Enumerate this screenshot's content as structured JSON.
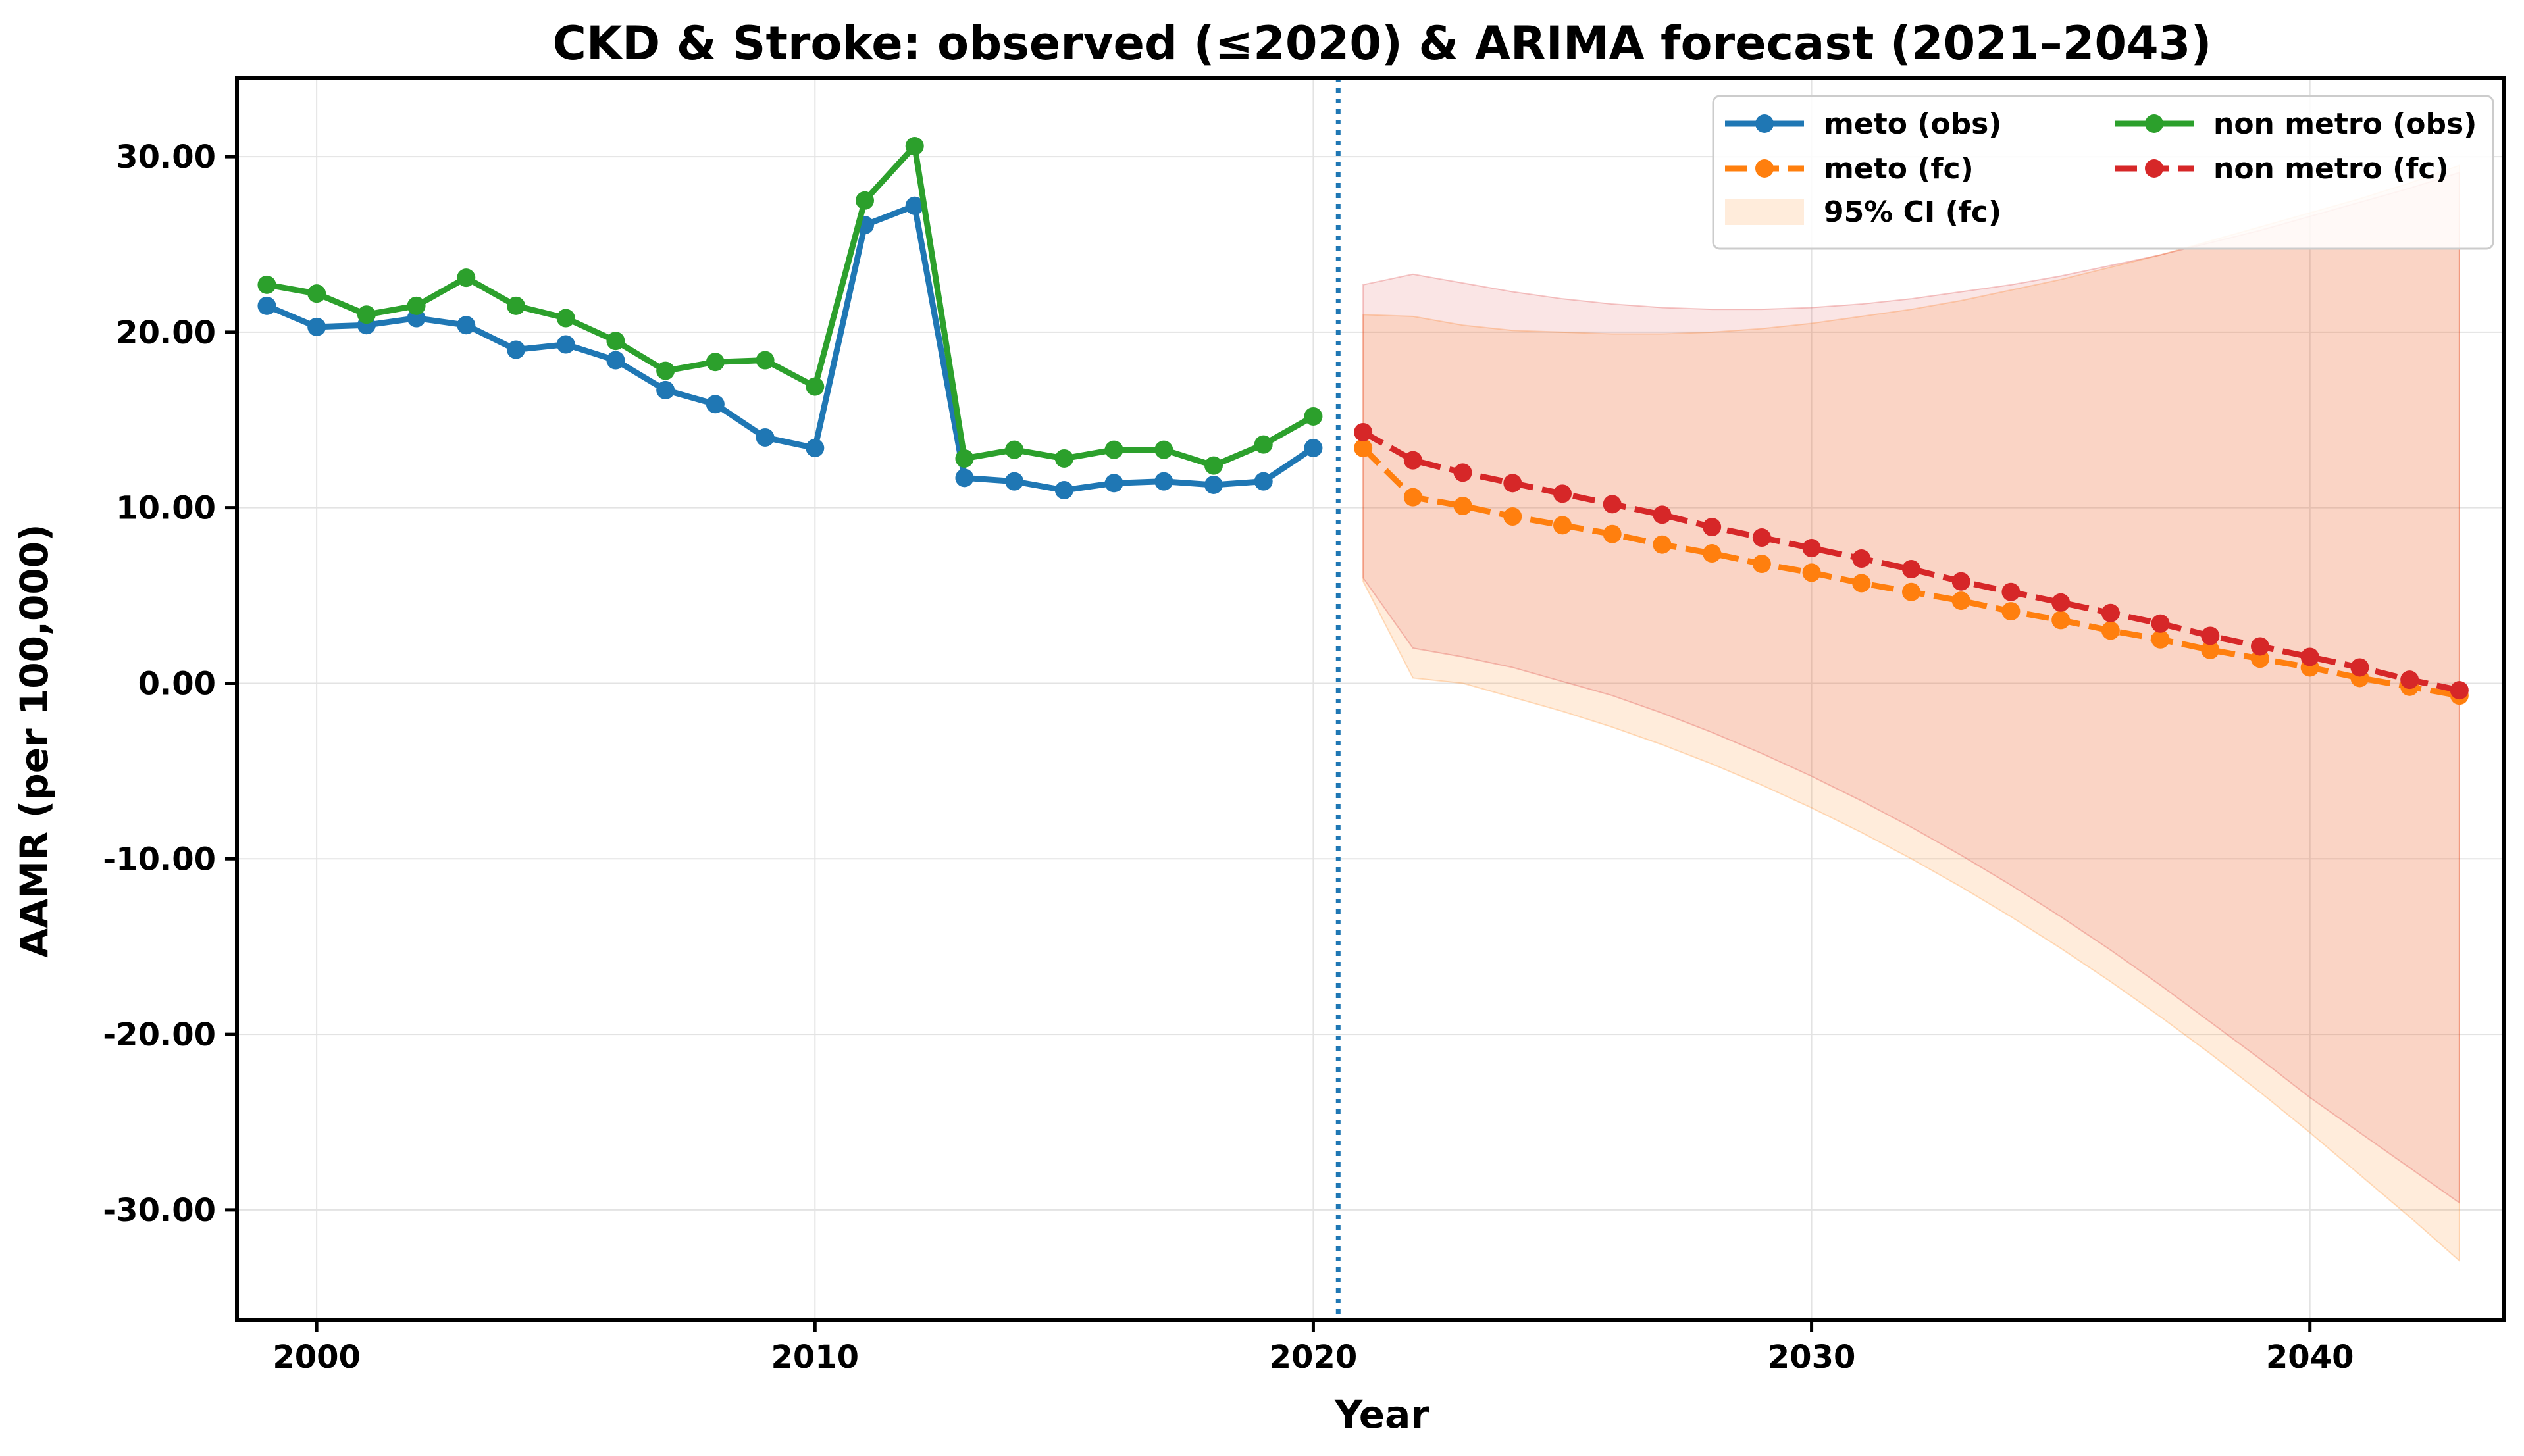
{
  "chart_data": {
    "type": "line",
    "title": "CKD & Stroke: observed (≤2020) & ARIMA forecast (2021–2043)",
    "xlabel": "Year",
    "ylabel": "AAMR (per 100,000)",
    "xlim": [
      1998.4,
      2043.9
    ],
    "ylim": [
      -36.3,
      34.5
    ],
    "x_ticks": [
      2000,
      2010,
      2020,
      2030,
      2040
    ],
    "x_tick_labels": [
      "2000",
      "2010",
      "2020",
      "2030",
      "2040"
    ],
    "y_ticks": [
      -30,
      -20,
      -10,
      0,
      10,
      20,
      30
    ],
    "y_tick_labels": [
      "-30.00",
      "-20.00",
      "-10.00",
      "0.00",
      "10.00",
      "20.00",
      "30.00"
    ],
    "grid": true,
    "legend_position": "top-right",
    "vline": {
      "x": 2020.5,
      "style": "dotted",
      "color": "#1f77b4"
    },
    "series": [
      {
        "name": "meto (obs)",
        "color": "#1f77b4",
        "style": "solid",
        "x": [
          1999,
          2000,
          2001,
          2002,
          2003,
          2004,
          2005,
          2006,
          2007,
          2008,
          2009,
          2010,
          2011,
          2012,
          2013,
          2014,
          2015,
          2016,
          2017,
          2018,
          2019,
          2020
        ],
        "y": [
          21.5,
          20.3,
          20.4,
          20.8,
          20.4,
          19.0,
          19.3,
          18.4,
          16.7,
          15.9,
          14.0,
          13.4,
          26.1,
          27.2,
          11.7,
          11.5,
          11.0,
          11.4,
          11.5,
          11.3,
          11.5,
          13.4
        ]
      },
      {
        "name": "meto (fc)",
        "color": "#ff7f0e",
        "style": "dashed",
        "x": [
          2021,
          2022,
          2023,
          2024,
          2025,
          2026,
          2027,
          2028,
          2029,
          2030,
          2031,
          2032,
          2033,
          2034,
          2035,
          2036,
          2037,
          2038,
          2039,
          2040,
          2041,
          2042,
          2043
        ],
        "y": [
          13.4,
          10.6,
          10.1,
          9.5,
          9.0,
          8.5,
          7.9,
          7.4,
          6.8,
          6.3,
          5.7,
          5.2,
          4.7,
          4.1,
          3.6,
          3.0,
          2.5,
          1.9,
          1.4,
          0.9,
          0.3,
          -0.2,
          -0.7
        ]
      },
      {
        "name": "non metro (obs)",
        "color": "#2ca02c",
        "style": "solid",
        "x": [
          1999,
          2000,
          2001,
          2002,
          2003,
          2004,
          2005,
          2006,
          2007,
          2008,
          2009,
          2010,
          2011,
          2012,
          2013,
          2014,
          2015,
          2016,
          2017,
          2018,
          2019,
          2020
        ],
        "y": [
          22.7,
          22.2,
          21.0,
          21.5,
          23.1,
          21.5,
          20.8,
          19.5,
          17.8,
          18.3,
          18.4,
          16.9,
          27.5,
          30.6,
          12.8,
          13.3,
          12.8,
          13.3,
          13.3,
          12.4,
          13.6,
          15.2
        ]
      },
      {
        "name": "non metro (fc)",
        "color": "#d62728",
        "style": "dashed",
        "x": [
          2021,
          2022,
          2023,
          2024,
          2025,
          2026,
          2027,
          2028,
          2029,
          2030,
          2031,
          2032,
          2033,
          2034,
          2035,
          2036,
          2037,
          2038,
          2039,
          2040,
          2041,
          2042,
          2043
        ],
        "y": [
          14.3,
          12.7,
          12.0,
          11.4,
          10.8,
          10.2,
          9.6,
          8.9,
          8.3,
          7.7,
          7.1,
          6.5,
          5.8,
          5.2,
          4.6,
          4.0,
          3.4,
          2.7,
          2.1,
          1.5,
          0.9,
          0.2,
          -0.4
        ]
      }
    ],
    "ci_bands": [
      {
        "name": "95% CI (fc)",
        "color": "#ff7f0e",
        "opacity": 0.15,
        "x": [
          2021,
          2022,
          2023,
          2024,
          2025,
          2026,
          2027,
          2028,
          2029,
          2030,
          2031,
          2032,
          2033,
          2034,
          2035,
          2036,
          2037,
          2038,
          2039,
          2040,
          2041,
          2042,
          2043
        ],
        "lower": [
          5.8,
          0.3,
          0.0,
          -0.8,
          -1.6,
          -2.5,
          -3.5,
          -4.6,
          -5.8,
          -7.1,
          -8.5,
          -10.0,
          -11.6,
          -13.3,
          -15.1,
          -17.0,
          -19.0,
          -21.1,
          -23.3,
          -25.6,
          -28.0,
          -30.4,
          -32.9
        ],
        "upper": [
          21.0,
          20.9,
          20.4,
          20.1,
          20.0,
          19.9,
          19.9,
          20.0,
          20.2,
          20.5,
          20.9,
          21.3,
          21.8,
          22.4,
          23.0,
          23.7,
          24.4,
          25.2,
          26.0,
          26.8,
          27.6,
          28.5,
          29.5
        ]
      },
      {
        "name": "",
        "color": "#d62728",
        "opacity": 0.12,
        "x": [
          2021,
          2022,
          2023,
          2024,
          2025,
          2026,
          2027,
          2028,
          2029,
          2030,
          2031,
          2032,
          2033,
          2034,
          2035,
          2036,
          2037,
          2038,
          2039,
          2040,
          2041,
          2042,
          2043
        ],
        "lower": [
          6.0,
          2.0,
          1.5,
          0.9,
          0.1,
          -0.7,
          -1.7,
          -2.8,
          -4.0,
          -5.3,
          -6.7,
          -8.2,
          -9.8,
          -11.5,
          -13.3,
          -15.2,
          -17.2,
          -19.3,
          -21.4,
          -23.6,
          -25.6,
          -27.6,
          -29.6
        ],
        "upper": [
          22.7,
          23.3,
          22.8,
          22.3,
          21.9,
          21.6,
          21.4,
          21.3,
          21.3,
          21.4,
          21.6,
          21.9,
          22.3,
          22.7,
          23.2,
          23.8,
          24.4,
          25.1,
          25.8,
          26.6,
          27.4,
          28.2,
          29.1
        ]
      }
    ]
  }
}
